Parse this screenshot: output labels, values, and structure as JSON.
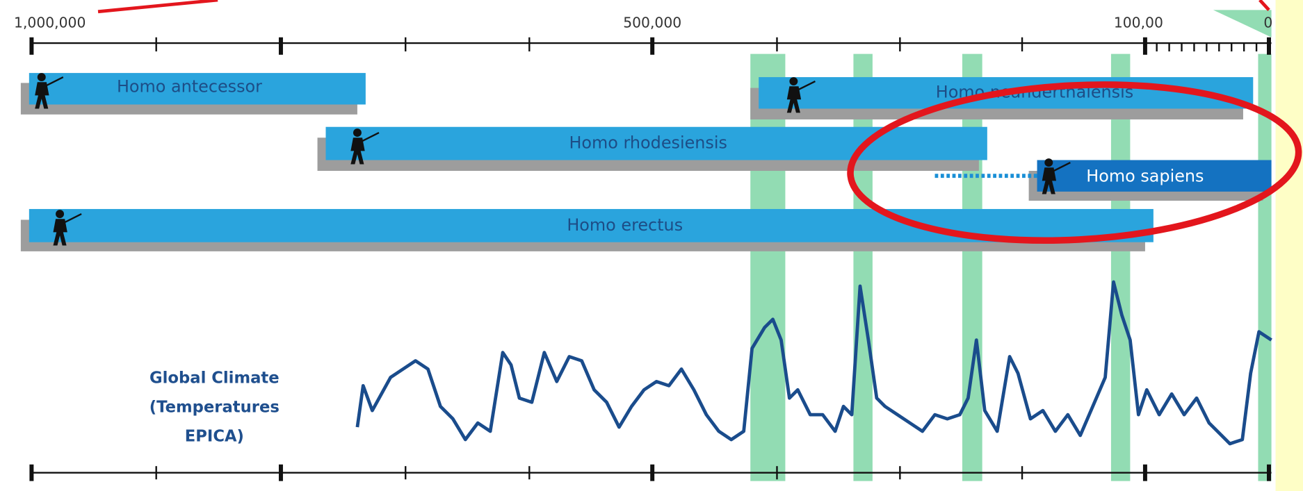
{
  "axis": {
    "labels": [
      "1,000,000",
      "500,000",
      "100,00",
      "0"
    ]
  },
  "species": {
    "antecessor": "Homo antecessor",
    "neanderthalensis": "Homo neanderthalensis",
    "rhodesiensis": "Homo rhodesiensis",
    "sapiens": "Homo sapiens",
    "erectus": "Homo erectus"
  },
  "climate_label": [
    "Global Climate",
    "(Temperatures",
    "EPICA)"
  ]
}
